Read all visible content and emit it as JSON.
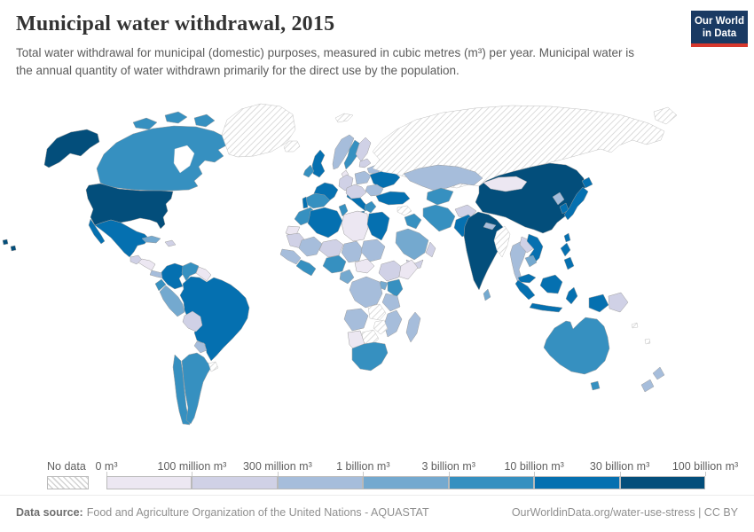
{
  "header": {
    "title": "Municipal water withdrawal, 2015",
    "subtitle": "Total water withdrawal for municipal (domestic) purposes, measured in cubic metres (m³) per year. Municipal water is the annual quantity of water withdrawn primarily for the direct use by the population."
  },
  "logo": {
    "line1": "Our World",
    "line2": "in Data"
  },
  "footer": {
    "source_label": "Data source:",
    "source_value": "Food and Agriculture Organization of the United Nations - AQUASTAT",
    "url": "OurWorldinData.org/water-use-stress",
    "license": " | CC BY"
  },
  "colors": {
    "logo_bg": "#1a3a63",
    "logo_accent": "#d7382d",
    "country_border": "#9d9d9d",
    "nodata_hatch": "#d2d2d2"
  },
  "chart_data": {
    "type": "heatmap",
    "map_type": "world-choropleth",
    "title": "Municipal water withdrawal, 2015",
    "year": "2015",
    "unit": "cubic metres (m³) per year",
    "no_data_label": "No data",
    "legend_tick_labels": [
      "0 m³",
      "100 million m³",
      "300 million m³",
      "1 billion m³",
      "3 billion m³",
      "10 billion m³",
      "30 billion m³",
      "100 billion m³"
    ],
    "legend_bin_colors": [
      "#ece7f2",
      "#d0d1e6",
      "#a6bddb",
      "#74a9cf",
      "#3690c0",
      "#0570b0",
      "#034e7b"
    ],
    "bin_ranges": [
      "0–100 million m³",
      "100–300 million m³",
      "300 million–1 billion m³",
      "1–3 billion m³",
      "3–10 billion m³",
      "10–30 billion m³",
      "30–100 billion m³"
    ],
    "country_bins": {
      "canada": 4,
      "united-states": 6,
      "greenland": "no_data",
      "iceland": "no_data",
      "mexico": 5,
      "guatemala": 1,
      "honduras-nicaragua": 0,
      "costa-rica-panama": 2,
      "cuba": 3,
      "hispaniola": 1,
      "colombia": 5,
      "venezuela": 4,
      "guyana-suriname": 0,
      "ecuador": 4,
      "peru": 3,
      "brazil": 5,
      "bolivia": 1,
      "paraguay": 2,
      "chile": 4,
      "argentina": 4,
      "uruguay": "no_data",
      "united-kingdom": 5,
      "ireland": 4,
      "norway": 2,
      "sweden": 4,
      "finland": 1,
      "denmark": 0,
      "germany": 1,
      "france": 5,
      "spain": 4,
      "portugal": 5,
      "italy": 5,
      "poland": 2,
      "central-europe": 1,
      "greece": 4,
      "ukraine": 5,
      "belarus": 2,
      "baltic-states": 1,
      "romania-bulgaria": 2,
      "russia": "no_data",
      "svalbard": "no_data",
      "turkey": 5,
      "syria": "no_data",
      "iraq": 4,
      "saudi-arabia": 3,
      "yemen": 1,
      "oman": 1,
      "iran": 4,
      "kazakhstan": 2,
      "uzbekistan-turkmenistan": 4,
      "afghanistan": 1,
      "pakistan": 5,
      "india": 6,
      "nepal": 2,
      "bangladesh": 4,
      "sri-lanka": 3,
      "china": 6,
      "mongolia": 0,
      "north-korea": 2,
      "south-korea": 5,
      "japan": 5,
      "taiwan": 5,
      "myanmar": "no_data",
      "thailand": 2,
      "laos": 1,
      "vietnam": 5,
      "cambodia": 3,
      "philippines": 5,
      "malaysia": 5,
      "indonesia": 5,
      "papua-new-guinea": 1,
      "australia": 4,
      "new-zealand": 2,
      "pacific-islands": "no_data",
      "morocco": 4,
      "western-sahara": 0,
      "algeria": 5,
      "tunisia": 4,
      "libya": 0,
      "egypt": 5,
      "mauritania": 1,
      "mali": 2,
      "niger": 1,
      "chad": 2,
      "sudan": 2,
      "senegal-guinea": 2,
      "ghana-ivory": 4,
      "nigeria": 4,
      "cameroon": 3,
      "central-african": 0,
      "ethiopia": 1,
      "somalia": 0,
      "kenya": 4,
      "uganda": 3,
      "drc": 2,
      "tanzania": 2,
      "zambia": "no_data",
      "angola": 2,
      "mozambique": 2,
      "zimbabwe": "no_data",
      "botswana": "no_data",
      "namibia": 0,
      "south-africa": 4,
      "madagascar": 2
    }
  }
}
